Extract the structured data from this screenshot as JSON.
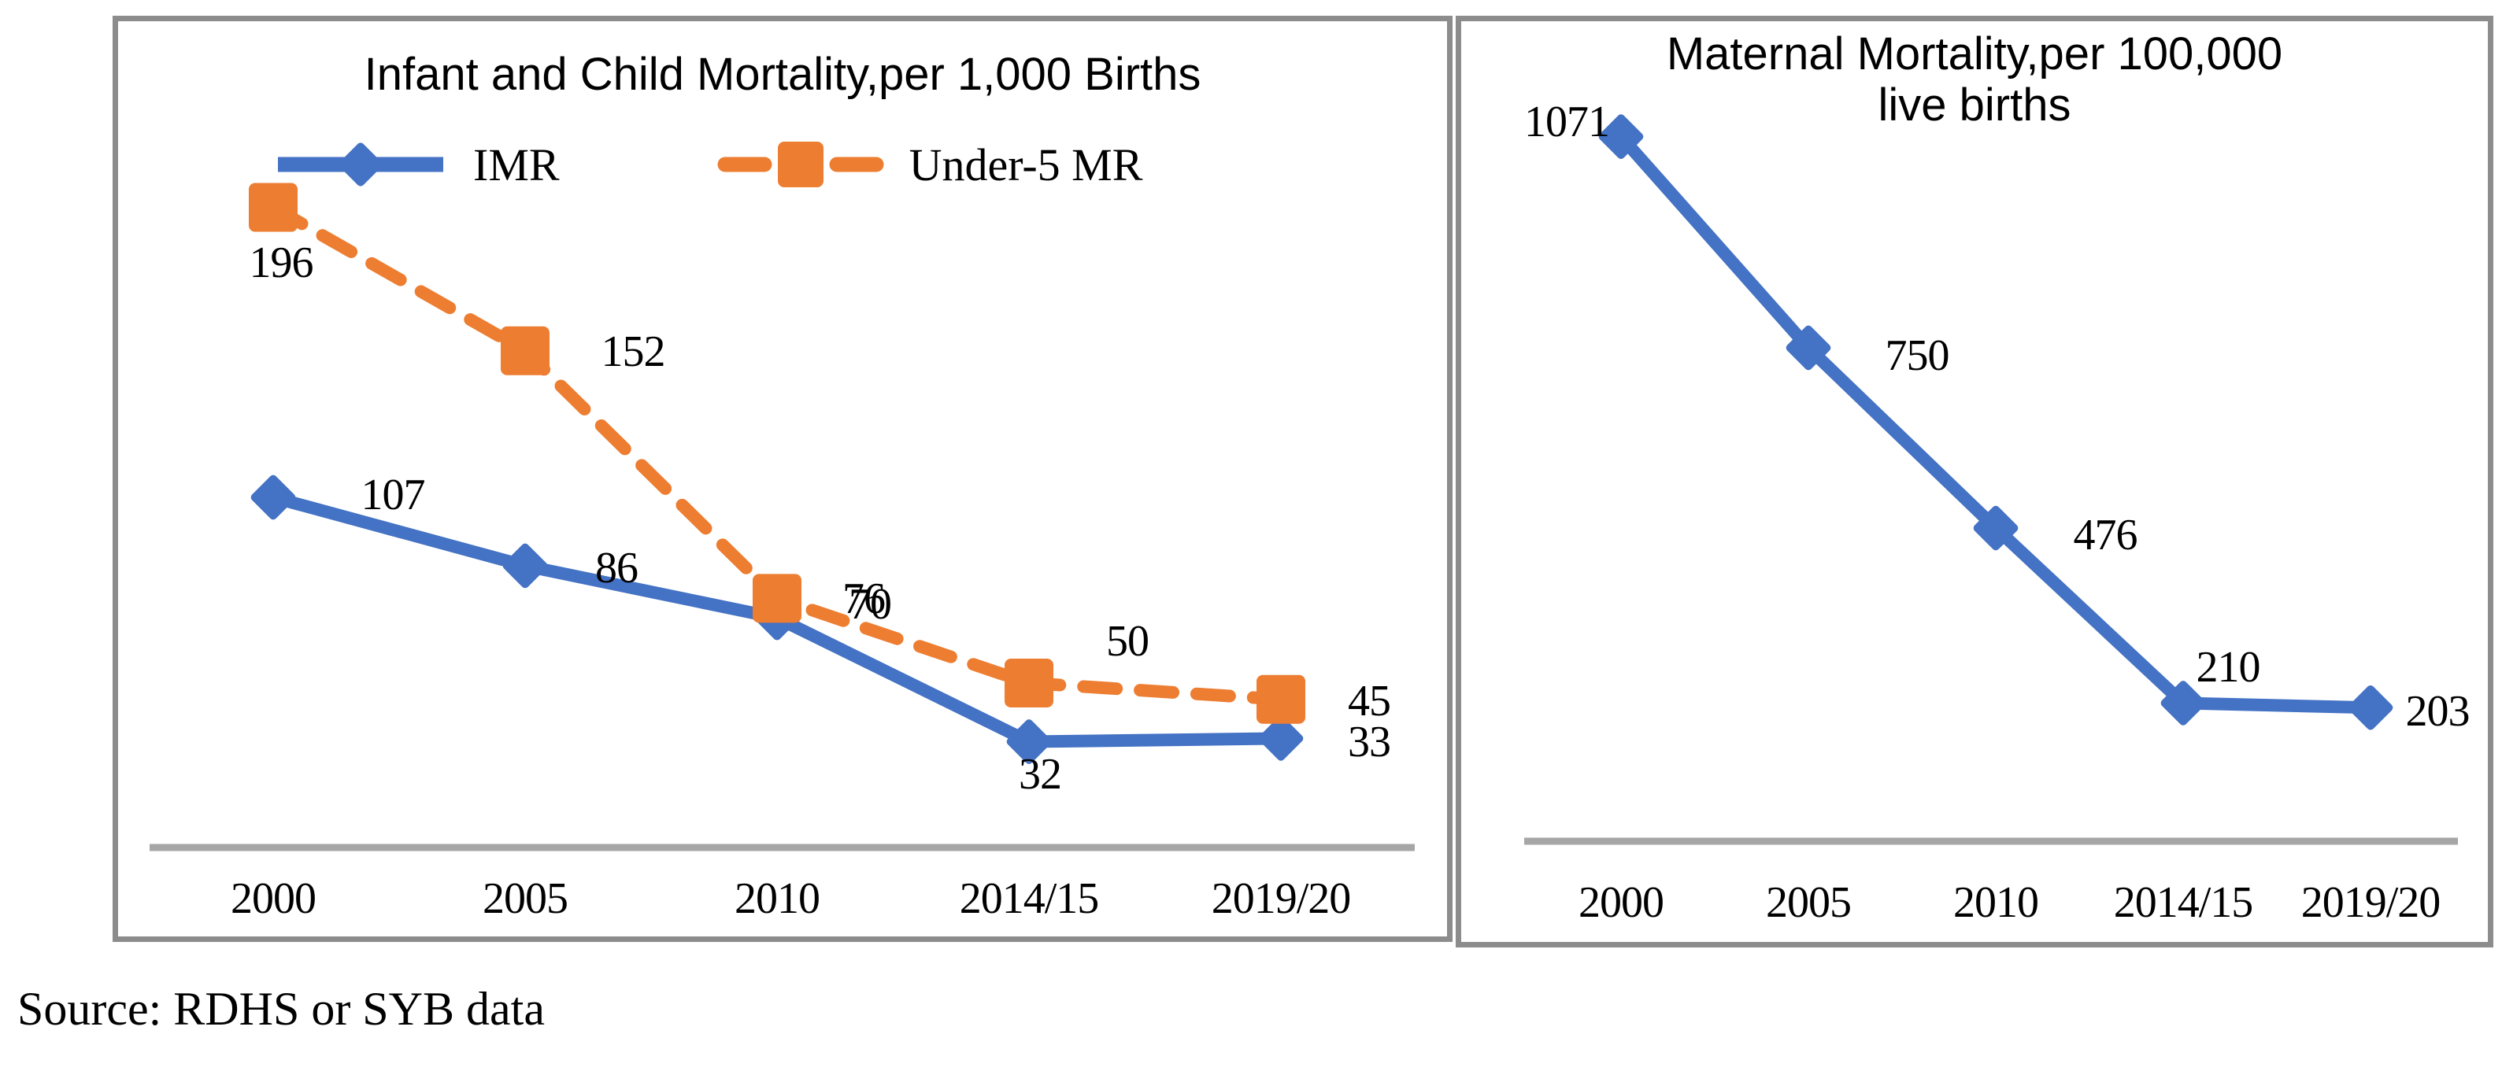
{
  "figure": {
    "source_note": "Source: RDHS or SYB data",
    "frame_color": "#8C8C8C",
    "axis_color": "#A6A6A6",
    "text_color": "#000000",
    "accent_blue": "#4472C4",
    "accent_orange": "#ED7D31"
  },
  "chart_data": [
    {
      "type": "line",
      "title": "Infant and Child Mortality,per 1,000 Births",
      "categories": [
        "2000",
        "2005",
        "2010",
        "2014/15",
        "2019/20"
      ],
      "series": [
        {
          "name": "IMR",
          "color": "#4472C4",
          "marker": "diamond",
          "line_style": "solid",
          "values": [
            107,
            86,
            70,
            32,
            33
          ],
          "data_labels": [
            "107",
            "86",
            "70",
            "32",
            "33"
          ]
        },
        {
          "name": "Under-5 MR",
          "color": "#ED7D31",
          "marker": "square",
          "line_style": "dashed",
          "values": [
            196,
            152,
            76,
            50,
            45
          ],
          "data_labels": [
            "196",
            "152",
            "76",
            "50",
            "45"
          ]
        }
      ],
      "legend_position": "top",
      "x_axis": {
        "labels": [
          "2000",
          "2005",
          "2010",
          "2014/15",
          "2019/20"
        ]
      },
      "y_axis": {
        "visible": false,
        "min": 0,
        "max": 250,
        "gridlines": false
      },
      "note": "IMR and Under-5 MR data labels overlap at 2010 (70 over 76)"
    },
    {
      "type": "line",
      "title": "Maternal Mortality,per 100,000 live births",
      "categories": [
        "2000",
        "2005",
        "2010",
        "2014/15",
        "2019/20"
      ],
      "series": [
        {
          "name": "Maternal Mortality",
          "color": "#4472C4",
          "marker": "diamond",
          "line_style": "solid",
          "values": [
            1071,
            750,
            476,
            210,
            203
          ],
          "data_labels": [
            "1071",
            "750",
            "476",
            "210",
            "203"
          ]
        }
      ],
      "legend_position": "none",
      "x_axis": {
        "labels": [
          "2000",
          "2005",
          "2010",
          "2014/15",
          "2019/20"
        ]
      },
      "y_axis": {
        "visible": false,
        "min": 0,
        "max": 1250,
        "gridlines": false
      }
    }
  ]
}
